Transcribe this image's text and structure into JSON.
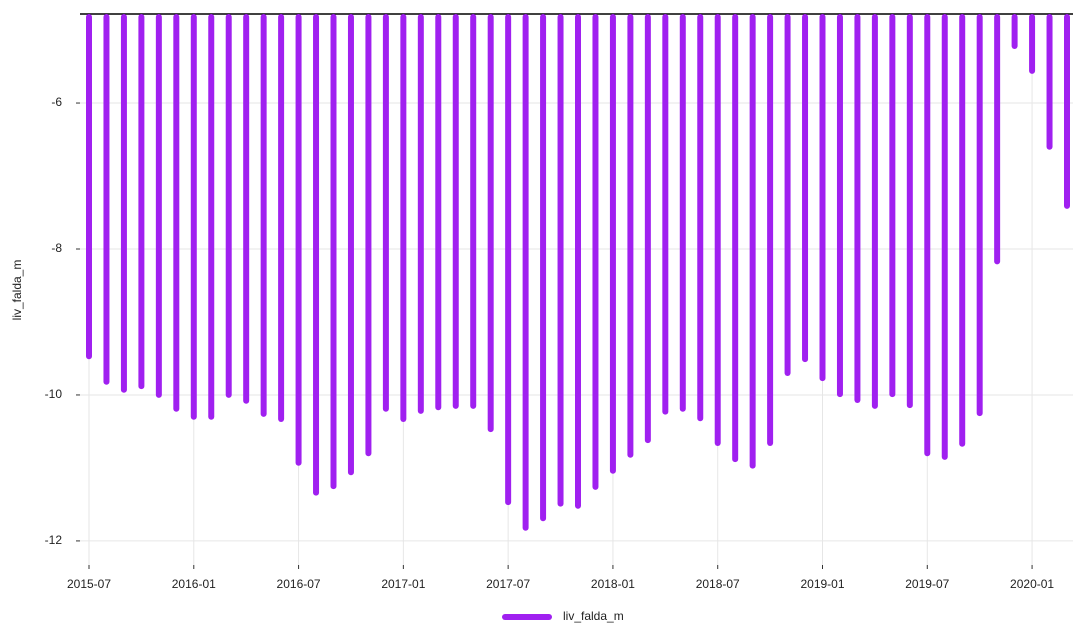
{
  "chart_data": {
    "type": "bar",
    "y_label": "liv_falda_m",
    "x": [
      "2015-07",
      "2015-08",
      "2015-09",
      "2015-10",
      "2015-11",
      "2015-12",
      "2016-01",
      "2016-02",
      "2016-03",
      "2016-04",
      "2016-05",
      "2016-06",
      "2016-07",
      "2016-08",
      "2016-09",
      "2016-10",
      "2016-11",
      "2016-12",
      "2017-01",
      "2017-02",
      "2017-03",
      "2017-04",
      "2017-05",
      "2017-06",
      "2017-07",
      "2017-08",
      "2017-09",
      "2017-10",
      "2017-11",
      "2017-12",
      "2018-01",
      "2018-02",
      "2018-03",
      "2018-04",
      "2018-05",
      "2018-06",
      "2018-07",
      "2018-08",
      "2018-09",
      "2018-10",
      "2018-11",
      "2018-12",
      "2019-01",
      "2019-02",
      "2019-03",
      "2019-04",
      "2019-05",
      "2019-06",
      "2019-07",
      "2019-08",
      "2019-09",
      "2019-10",
      "2019-11",
      "2019-12",
      "2020-01",
      "2020-02",
      "2020-03"
    ],
    "series": [
      {
        "name": "liv_falda_m",
        "color": "#a020f0",
        "values": [
          -9.51,
          -9.86,
          -9.97,
          -9.92,
          -10.04,
          -10.23,
          -10.34,
          -10.34,
          -10.04,
          -10.12,
          -10.3,
          -10.37,
          -10.97,
          -11.38,
          -11.29,
          -11.1,
          -10.84,
          -10.23,
          -10.37,
          -10.26,
          -10.21,
          -10.19,
          -10.19,
          -10.51,
          -11.51,
          -11.86,
          -11.73,
          -11.53,
          -11.56,
          -11.3,
          -11.08,
          -10.86,
          -10.66,
          -10.27,
          -10.23,
          -10.36,
          -10.7,
          -10.92,
          -11.01,
          -10.7,
          -9.74,
          -9.55,
          -9.81,
          -10.03,
          -10.11,
          -10.19,
          -10.03,
          -10.18,
          -10.84,
          -10.89,
          -10.71,
          -10.29,
          -8.21,
          -5.26,
          -5.6,
          -6.64,
          -7.45
        ]
      }
    ],
    "xticks": [
      "2015-07",
      "2016-01",
      "2016-07",
      "2017-01",
      "2017-07",
      "2018-01",
      "2018-07",
      "2019-01",
      "2019-07",
      "2020-01"
    ],
    "ylim": [
      -12.33,
      -4.78
    ],
    "yticks": [
      -6,
      -8,
      -10,
      -12
    ],
    "grid": true,
    "legend": "bottom"
  }
}
